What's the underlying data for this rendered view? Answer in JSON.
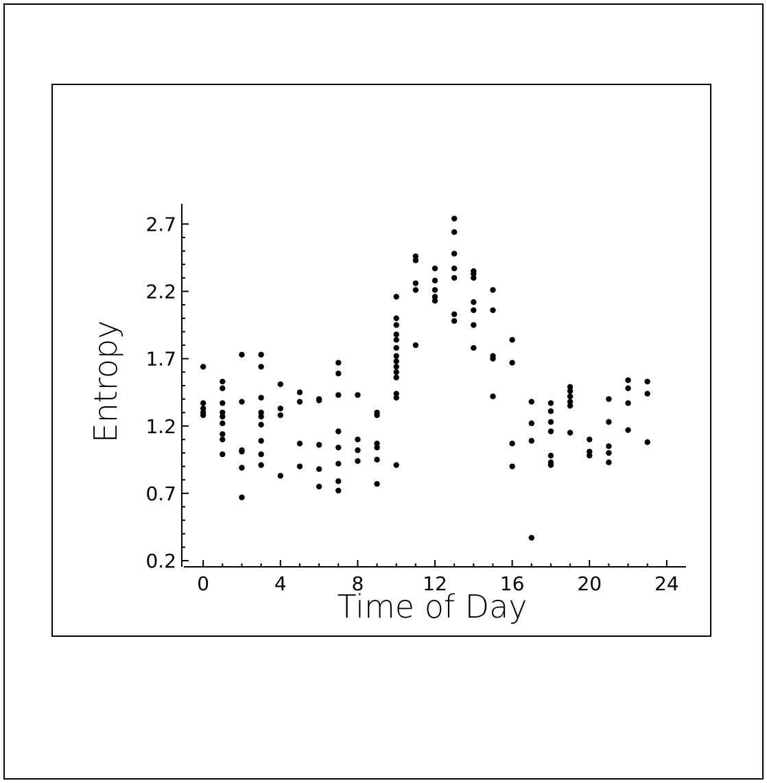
{
  "chart_data": {
    "type": "scatter",
    "title": "",
    "xlabel": "Time of Day",
    "ylabel": "Entropy",
    "xlim": [
      -1,
      25
    ],
    "ylim": [
      0.2,
      2.85
    ],
    "x_ticks": [
      0,
      4,
      8,
      12,
      16,
      20,
      24
    ],
    "x_tick_labels": [
      "0",
      "4",
      "8",
      "12",
      "16",
      "20",
      "24"
    ],
    "y_ticks": [
      0.2,
      0.7,
      1.2,
      1.7,
      2.2,
      2.7
    ],
    "y_tick_labels": [
      "0.2",
      "0.7",
      "1.2",
      "1.7",
      "2.2",
      "2.7"
    ],
    "grid": false,
    "legend": "none",
    "marker_color": "#000000",
    "series": [
      {
        "points": [
          [
            0,
            1.64
          ],
          [
            0,
            1.37
          ],
          [
            0,
            1.33
          ],
          [
            0,
            1.3
          ],
          [
            0,
            1.28
          ],
          [
            1,
            1.53
          ],
          [
            1,
            1.48
          ],
          [
            1,
            1.37
          ],
          [
            1,
            1.3
          ],
          [
            1,
            1.27
          ],
          [
            1,
            1.22
          ],
          [
            1,
            1.14
          ],
          [
            1,
            1.1
          ],
          [
            1,
            0.99
          ],
          [
            2,
            1.73
          ],
          [
            2,
            1.38
          ],
          [
            2,
            1.02
          ],
          [
            2,
            1.01
          ],
          [
            2,
            0.89
          ],
          [
            2,
            0.67
          ],
          [
            3,
            1.73
          ],
          [
            3,
            1.64
          ],
          [
            3,
            1.41
          ],
          [
            3,
            1.3
          ],
          [
            3,
            1.27
          ],
          [
            3,
            1.21
          ],
          [
            3,
            1.09
          ],
          [
            3,
            0.99
          ],
          [
            3,
            0.91
          ],
          [
            4,
            1.51
          ],
          [
            4,
            1.33
          ],
          [
            4,
            1.28
          ],
          [
            4,
            0.83
          ],
          [
            5,
            1.45
          ],
          [
            5,
            1.38
          ],
          [
            5,
            1.07
          ],
          [
            5,
            0.9
          ],
          [
            6,
            1.4
          ],
          [
            6,
            1.39
          ],
          [
            6,
            1.06
          ],
          [
            6,
            0.88
          ],
          [
            6,
            0.75
          ],
          [
            7,
            1.67
          ],
          [
            7,
            1.59
          ],
          [
            7,
            1.43
          ],
          [
            7,
            1.16
          ],
          [
            7,
            1.04
          ],
          [
            7,
            0.92
          ],
          [
            7,
            0.79
          ],
          [
            7,
            0.72
          ],
          [
            8,
            1.43
          ],
          [
            8,
            1.1
          ],
          [
            8,
            1.02
          ],
          [
            8,
            0.94
          ],
          [
            9,
            1.3
          ],
          [
            9,
            1.28
          ],
          [
            9,
            1.07
          ],
          [
            9,
            1.04
          ],
          [
            9,
            0.95
          ],
          [
            9,
            0.77
          ],
          [
            10,
            2.16
          ],
          [
            10,
            2.0
          ],
          [
            10,
            1.95
          ],
          [
            10,
            1.88
          ],
          [
            10,
            1.84
          ],
          [
            10,
            1.78
          ],
          [
            10,
            1.72
          ],
          [
            10,
            1.68
          ],
          [
            10,
            1.64
          ],
          [
            10,
            1.6
          ],
          [
            10,
            1.56
          ],
          [
            10,
            1.44
          ],
          [
            10,
            1.41
          ],
          [
            10,
            0.91
          ],
          [
            11,
            2.46
          ],
          [
            11,
            2.43
          ],
          [
            11,
            2.26
          ],
          [
            11,
            2.21
          ],
          [
            11,
            1.8
          ],
          [
            12,
            2.37
          ],
          [
            12,
            2.28
          ],
          [
            12,
            2.21
          ],
          [
            12,
            2.16
          ],
          [
            12,
            2.13
          ],
          [
            13,
            2.74
          ],
          [
            13,
            2.64
          ],
          [
            13,
            2.48
          ],
          [
            13,
            2.37
          ],
          [
            13,
            2.3
          ],
          [
            13,
            2.03
          ],
          [
            13,
            1.98
          ],
          [
            14,
            2.35
          ],
          [
            14,
            2.33
          ],
          [
            14,
            2.3
          ],
          [
            14,
            2.12
          ],
          [
            14,
            2.06
          ],
          [
            14,
            1.95
          ],
          [
            14,
            1.78
          ],
          [
            15,
            2.21
          ],
          [
            15,
            2.06
          ],
          [
            15,
            1.72
          ],
          [
            15,
            1.7
          ],
          [
            15,
            1.42
          ],
          [
            16,
            1.84
          ],
          [
            16,
            1.67
          ],
          [
            16,
            1.07
          ],
          [
            16,
            0.9
          ],
          [
            17,
            1.38
          ],
          [
            17,
            1.22
          ],
          [
            17,
            1.09
          ],
          [
            17,
            0.37
          ],
          [
            18,
            1.37
          ],
          [
            18,
            1.31
          ],
          [
            18,
            1.23
          ],
          [
            18,
            1.16
          ],
          [
            18,
            0.98
          ],
          [
            18,
            0.93
          ],
          [
            18,
            0.91
          ],
          [
            19,
            1.49
          ],
          [
            19,
            1.46
          ],
          [
            19,
            1.42
          ],
          [
            19,
            1.38
          ],
          [
            19,
            1.35
          ],
          [
            19,
            1.15
          ],
          [
            20,
            1.1
          ],
          [
            20,
            1.01
          ],
          [
            20,
            0.98
          ],
          [
            21,
            1.4
          ],
          [
            21,
            1.23
          ],
          [
            21,
            1.05
          ],
          [
            21,
            1.0
          ],
          [
            21,
            0.93
          ],
          [
            22,
            1.54
          ],
          [
            22,
            1.48
          ],
          [
            22,
            1.37
          ],
          [
            22,
            1.17
          ],
          [
            23,
            1.53
          ],
          [
            23,
            1.44
          ],
          [
            23,
            1.08
          ]
        ]
      }
    ]
  }
}
